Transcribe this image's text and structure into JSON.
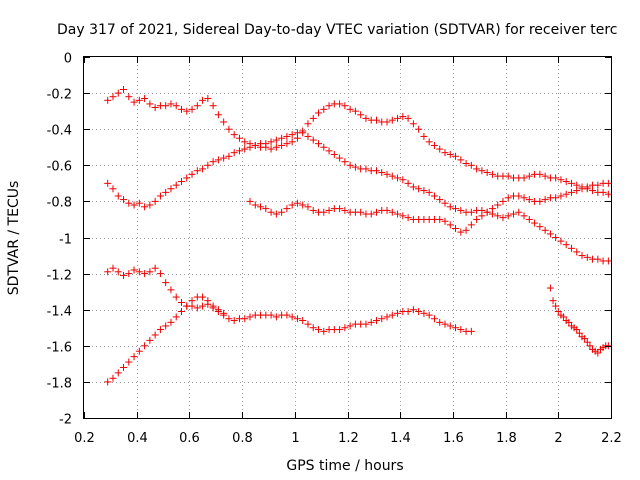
{
  "chart_data": {
    "type": "scatter",
    "title": "Day 317 of 2021, Sidereal Day-to-day VTEC variation (SDTVAR) for receiver terc",
    "xlabel": "GPS time / hours",
    "ylabel": "SDTVAR / TECUs",
    "xlim": [
      0.2,
      2.2
    ],
    "ylim": [
      -2,
      0
    ],
    "xticks": [
      0.2,
      0.4,
      0.6,
      0.8,
      1,
      1.2,
      1.4,
      1.6,
      1.8,
      2,
      2.2
    ],
    "yticks": [
      0,
      -0.2,
      -0.4,
      -0.6,
      -0.8,
      -1,
      -1.2,
      -1.4,
      -1.6,
      -1.8,
      -2
    ],
    "xtick_labels": [
      "0.2",
      "0.4",
      "0.6",
      "0.8",
      "1",
      "1.2",
      "1.4",
      "1.6",
      "1.8",
      "2",
      "2.2"
    ],
    "ytick_labels": [
      "0",
      "-0.2",
      "-0.4",
      "-0.6",
      "-0.8",
      "-1",
      "-1.2",
      "-1.4",
      "-1.6",
      "-1.8",
      "-2"
    ],
    "grid": true,
    "marker": "+",
    "marker_color": "#ee0000",
    "series": [
      {
        "x": [
          0.29,
          0.31,
          0.33,
          0.35,
          0.37,
          0.39,
          0.41,
          0.43,
          0.45,
          0.47,
          0.49,
          0.51,
          0.53,
          0.55,
          0.57,
          0.59,
          0.61,
          0.63,
          0.65,
          0.67,
          0.69,
          0.71,
          0.73,
          0.75,
          0.77,
          0.79,
          0.81,
          0.83,
          0.85,
          0.87,
          0.89,
          0.91,
          0.93,
          0.95,
          0.97,
          0.99,
          1.01,
          1.03,
          1.05,
          1.07,
          1.09,
          1.11,
          1.13,
          1.15,
          1.17,
          1.19,
          1.21,
          1.23,
          1.25,
          1.27,
          1.29,
          1.31,
          1.33,
          1.35,
          1.37,
          1.39,
          1.41,
          1.43,
          1.45,
          1.47,
          1.49,
          1.51,
          1.53,
          1.55,
          1.57,
          1.59,
          1.61,
          1.63,
          1.65,
          1.67,
          1.69,
          1.71,
          1.73,
          1.75,
          1.77,
          1.79,
          1.81,
          1.83,
          1.85,
          1.87,
          1.89,
          1.91,
          1.93,
          1.95,
          1.97,
          1.99,
          2.01,
          2.03,
          2.05,
          2.07,
          2.09,
          2.11,
          2.13,
          2.15,
          2.17,
          2.19
        ],
        "y": [
          -0.24,
          -0.22,
          -0.2,
          -0.18,
          -0.22,
          -0.25,
          -0.24,
          -0.23,
          -0.26,
          -0.28,
          -0.27,
          -0.27,
          -0.26,
          -0.27,
          -0.29,
          -0.3,
          -0.29,
          -0.27,
          -0.24,
          -0.23,
          -0.27,
          -0.32,
          -0.36,
          -0.4,
          -0.43,
          -0.45,
          -0.47,
          -0.48,
          -0.49,
          -0.5,
          -0.5,
          -0.51,
          -0.5,
          -0.49,
          -0.48,
          -0.47,
          -0.45,
          -0.41,
          -0.37,
          -0.34,
          -0.31,
          -0.29,
          -0.27,
          -0.26,
          -0.26,
          -0.27,
          -0.29,
          -0.3,
          -0.32,
          -0.34,
          -0.35,
          -0.35,
          -0.36,
          -0.36,
          -0.35,
          -0.34,
          -0.33,
          -0.34,
          -0.37,
          -0.4,
          -0.44,
          -0.47,
          -0.49,
          -0.51,
          -0.53,
          -0.54,
          -0.55,
          -0.57,
          -0.59,
          -0.6,
          -0.62,
          -0.63,
          -0.64,
          -0.65,
          -0.66,
          -0.66,
          -0.66,
          -0.67,
          -0.67,
          -0.67,
          -0.66,
          -0.65,
          -0.65,
          -0.66,
          -0.67,
          -0.67,
          -0.68,
          -0.69,
          -0.7,
          -0.71,
          -0.72,
          -0.73,
          -0.74,
          -0.75,
          -0.75,
          -0.76
        ]
      },
      {
        "x": [
          0.29,
          0.31,
          0.33,
          0.35,
          0.37,
          0.39,
          0.41,
          0.43,
          0.45,
          0.47,
          0.49,
          0.51,
          0.53,
          0.55,
          0.57,
          0.59,
          0.61,
          0.63,
          0.65,
          0.67,
          0.69,
          0.71,
          0.73,
          0.75,
          0.77,
          0.79,
          0.81,
          0.83,
          0.85,
          0.87,
          0.89,
          0.91,
          0.93,
          0.95,
          0.97,
          0.99,
          1.01,
          1.03,
          1.05,
          1.07,
          1.09,
          1.11,
          1.13,
          1.15,
          1.17,
          1.19,
          1.21,
          1.23,
          1.25,
          1.27,
          1.29,
          1.31,
          1.33,
          1.35,
          1.37,
          1.39,
          1.41,
          1.43,
          1.45,
          1.47,
          1.49,
          1.51,
          1.53,
          1.55,
          1.57,
          1.59,
          1.61,
          1.63,
          1.65,
          1.67,
          1.69,
          1.71,
          1.73,
          1.75,
          1.77,
          1.79,
          1.81,
          1.83,
          1.85,
          1.87,
          1.89,
          1.91,
          1.93,
          1.95,
          1.97,
          1.99,
          2.01,
          2.03,
          2.05,
          2.07,
          2.09,
          2.11,
          2.13,
          2.15,
          2.17,
          2.19
        ],
        "y": [
          -0.7,
          -0.73,
          -0.77,
          -0.79,
          -0.81,
          -0.82,
          -0.81,
          -0.83,
          -0.82,
          -0.8,
          -0.77,
          -0.75,
          -0.73,
          -0.71,
          -0.69,
          -0.67,
          -0.65,
          -0.63,
          -0.62,
          -0.6,
          -0.58,
          -0.57,
          -0.56,
          -0.55,
          -0.53,
          -0.52,
          -0.51,
          -0.5,
          -0.49,
          -0.48,
          -0.48,
          -0.47,
          -0.46,
          -0.45,
          -0.44,
          -0.43,
          -0.42,
          -0.42,
          -0.44,
          -0.46,
          -0.48,
          -0.5,
          -0.52,
          -0.54,
          -0.56,
          -0.58,
          -0.6,
          -0.61,
          -0.62,
          -0.62,
          -0.63,
          -0.63,
          -0.64,
          -0.65,
          -0.66,
          -0.67,
          -0.68,
          -0.7,
          -0.72,
          -0.73,
          -0.74,
          -0.75,
          -0.77,
          -0.79,
          -0.81,
          -0.83,
          -0.84,
          -0.85,
          -0.86,
          -0.86,
          -0.85,
          -0.85,
          -0.86,
          -0.87,
          -0.88,
          -0.89,
          -0.88,
          -0.87,
          -0.86,
          -0.88,
          -0.9,
          -0.92,
          -0.94,
          -0.96,
          -0.98,
          -1.0,
          -1.02,
          -1.04,
          -1.06,
          -1.08,
          -1.1,
          -1.11,
          -1.12,
          -1.12,
          -1.13,
          -1.13
        ]
      },
      {
        "x": [
          0.83,
          0.85,
          0.87,
          0.89,
          0.91,
          0.93,
          0.95,
          0.97,
          0.99,
          1.01,
          1.03,
          1.05,
          1.07,
          1.09,
          1.11,
          1.13,
          1.15,
          1.17,
          1.19,
          1.21,
          1.23,
          1.25,
          1.27,
          1.29,
          1.31,
          1.33,
          1.35,
          1.37,
          1.39,
          1.41,
          1.43,
          1.45,
          1.47,
          1.49,
          1.51,
          1.53,
          1.55,
          1.57,
          1.59,
          1.61,
          1.63,
          1.65,
          1.67,
          1.69,
          1.71,
          1.73,
          1.75,
          1.77,
          1.79,
          1.81,
          1.83,
          1.85,
          1.87,
          1.89,
          1.91,
          1.93,
          1.95,
          1.97,
          1.99,
          2.01,
          2.03,
          2.05,
          2.07,
          2.09,
          2.11,
          2.13,
          2.15,
          2.17,
          2.19
        ],
        "y": [
          -0.8,
          -0.82,
          -0.83,
          -0.84,
          -0.86,
          -0.87,
          -0.86,
          -0.84,
          -0.82,
          -0.81,
          -0.82,
          -0.83,
          -0.85,
          -0.86,
          -0.86,
          -0.85,
          -0.84,
          -0.84,
          -0.85,
          -0.86,
          -0.86,
          -0.86,
          -0.87,
          -0.87,
          -0.86,
          -0.85,
          -0.85,
          -0.86,
          -0.87,
          -0.88,
          -0.89,
          -0.9,
          -0.9,
          -0.9,
          -0.9,
          -0.9,
          -0.9,
          -0.91,
          -0.93,
          -0.95,
          -0.97,
          -0.96,
          -0.93,
          -0.9,
          -0.88,
          -0.86,
          -0.84,
          -0.82,
          -0.8,
          -0.78,
          -0.77,
          -0.77,
          -0.78,
          -0.79,
          -0.8,
          -0.8,
          -0.79,
          -0.78,
          -0.78,
          -0.77,
          -0.76,
          -0.75,
          -0.74,
          -0.73,
          -0.72,
          -0.71,
          -0.71,
          -0.7,
          -0.7
        ]
      },
      {
        "x": [
          0.29,
          0.31,
          0.33,
          0.35,
          0.37,
          0.39,
          0.41,
          0.43,
          0.45,
          0.47,
          0.49,
          0.51,
          0.53,
          0.55,
          0.57,
          0.59,
          0.61,
          0.63,
          0.65,
          0.67,
          0.69,
          0.71,
          0.73,
          0.75,
          0.77,
          0.79,
          0.81,
          0.83,
          0.85,
          0.87,
          0.89,
          0.91,
          0.93,
          0.95,
          0.97,
          0.99,
          1.01,
          1.03,
          1.05,
          1.07,
          1.09,
          1.11,
          1.13,
          1.15,
          1.17,
          1.19,
          1.21,
          1.23,
          1.25,
          1.27,
          1.29,
          1.31,
          1.33,
          1.35,
          1.37,
          1.39,
          1.41,
          1.43,
          1.45,
          1.47,
          1.49,
          1.51,
          1.53,
          1.55,
          1.57,
          1.59,
          1.61,
          1.63,
          1.65,
          1.67
        ],
        "y": [
          -1.19,
          -1.17,
          -1.19,
          -1.21,
          -1.2,
          -1.18,
          -1.19,
          -1.2,
          -1.19,
          -1.17,
          -1.2,
          -1.25,
          -1.29,
          -1.33,
          -1.36,
          -1.38,
          -1.38,
          -1.39,
          -1.38,
          -1.37,
          -1.39,
          -1.41,
          -1.43,
          -1.45,
          -1.46,
          -1.45,
          -1.45,
          -1.44,
          -1.43,
          -1.43,
          -1.43,
          -1.43,
          -1.44,
          -1.43,
          -1.43,
          -1.44,
          -1.45,
          -1.46,
          -1.48,
          -1.5,
          -1.51,
          -1.52,
          -1.51,
          -1.51,
          -1.51,
          -1.5,
          -1.49,
          -1.48,
          -1.48,
          -1.48,
          -1.47,
          -1.46,
          -1.45,
          -1.44,
          -1.43,
          -1.42,
          -1.41,
          -1.41,
          -1.4,
          -1.41,
          -1.42,
          -1.43,
          -1.45,
          -1.47,
          -1.48,
          -1.49,
          -1.5,
          -1.51,
          -1.52,
          -1.52
        ]
      },
      {
        "x": [
          0.29,
          0.31,
          0.33,
          0.35,
          0.37,
          0.39,
          0.41,
          0.43,
          0.45,
          0.47,
          0.49,
          0.51,
          0.53,
          0.55,
          0.57,
          0.59,
          0.61,
          0.63,
          0.65,
          0.67,
          0.69,
          0.71,
          0.73
        ],
        "y": [
          -1.8,
          -1.78,
          -1.75,
          -1.72,
          -1.69,
          -1.66,
          -1.63,
          -1.6,
          -1.57,
          -1.54,
          -1.51,
          -1.49,
          -1.47,
          -1.44,
          -1.41,
          -1.38,
          -1.35,
          -1.33,
          -1.33,
          -1.35,
          -1.38,
          -1.4,
          -1.42
        ]
      },
      {
        "x": [
          1.97,
          1.98,
          1.99,
          2.0,
          2.01,
          2.02,
          2.03,
          2.04,
          2.05,
          2.06,
          2.07,
          2.08,
          2.09,
          2.1,
          2.11,
          2.12,
          2.13,
          2.14,
          2.15,
          2.16,
          2.17,
          2.18,
          2.19
        ],
        "y": [
          -1.28,
          -1.35,
          -1.38,
          -1.41,
          -1.43,
          -1.44,
          -1.46,
          -1.47,
          -1.49,
          -1.5,
          -1.51,
          -1.53,
          -1.55,
          -1.56,
          -1.58,
          -1.6,
          -1.62,
          -1.63,
          -1.64,
          -1.62,
          -1.61,
          -1.6,
          -1.6
        ]
      }
    ]
  }
}
